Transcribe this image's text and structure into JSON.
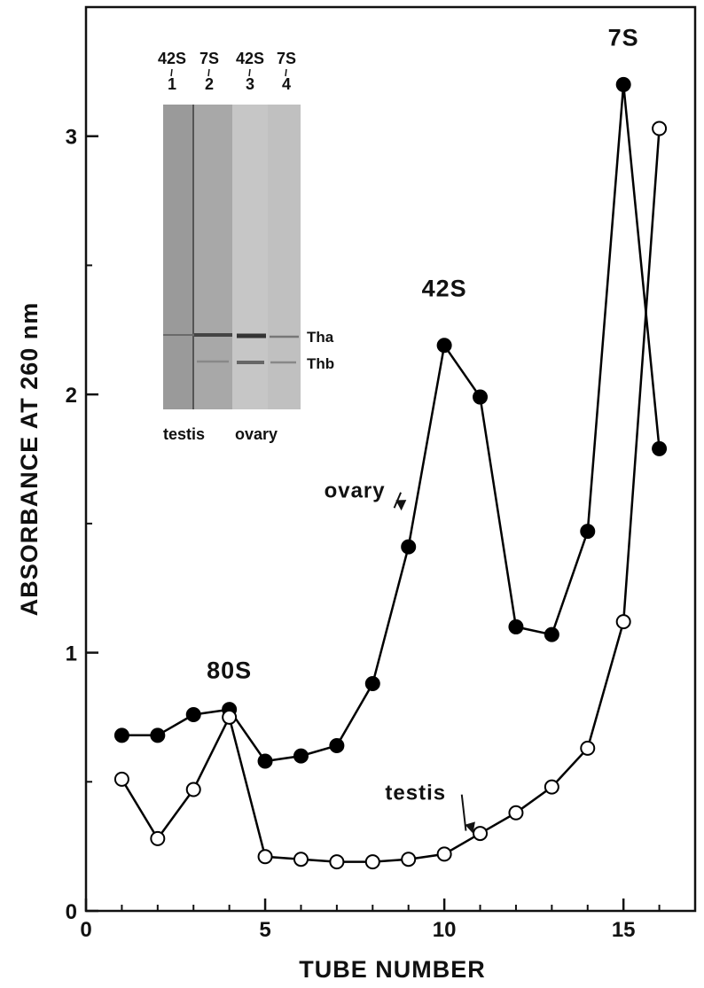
{
  "chart_data": {
    "type": "line",
    "title": "",
    "xlabel": "TUBE NUMBER",
    "ylabel": "ABSORBANCE AT 260 nm",
    "xlim": [
      0,
      17
    ],
    "ylim": [
      0,
      3.5
    ],
    "x_ticks": [
      "0",
      "5",
      "10",
      "15"
    ],
    "y_ticks": [
      "0",
      "1",
      "2",
      "3"
    ],
    "grid": false,
    "series": [
      {
        "name": "ovary",
        "marker": "filled-circle",
        "color": "#000000",
        "x": [
          1,
          2,
          3,
          4,
          5,
          6,
          7,
          8,
          9,
          10,
          11,
          12,
          13,
          14,
          15,
          16
        ],
        "y": [
          0.68,
          0.68,
          0.76,
          0.78,
          0.58,
          0.6,
          0.64,
          0.88,
          1.41,
          2.19,
          1.99,
          1.1,
          1.07,
          1.47,
          3.2,
          1.79
        ]
      },
      {
        "name": "testis",
        "marker": "open-circle",
        "color": "#000000",
        "x": [
          1,
          2,
          3,
          4,
          5,
          6,
          7,
          8,
          9,
          10,
          11,
          12,
          13,
          14,
          15,
          16
        ],
        "y": [
          0.51,
          0.28,
          0.47,
          0.75,
          0.21,
          0.2,
          0.19,
          0.19,
          0.2,
          0.22,
          0.3,
          0.38,
          0.48,
          0.63,
          1.12,
          3.03
        ]
      }
    ],
    "annotations": [
      {
        "text": "80S",
        "x": 4,
        "y": 0.9
      },
      {
        "text": "42S",
        "x": 10,
        "y": 2.38
      },
      {
        "text": "7S",
        "x": 15,
        "y": 3.35
      },
      {
        "text": "ovary",
        "x": 7.5,
        "y": 1.6,
        "arrow_to": [
          8.8,
          1.55
        ]
      },
      {
        "text": "testis",
        "x": 9.2,
        "y": 0.43,
        "arrow_to": [
          10.8,
          0.3
        ]
      }
    ],
    "inset": {
      "lanes": [
        {
          "top": "42S",
          "num": "1"
        },
        {
          "top": "7S",
          "num": "2"
        },
        {
          "top": "42S",
          "num": "3"
        },
        {
          "top": "7S",
          "num": "4"
        }
      ],
      "band_labels": [
        "Tha",
        "Thb"
      ],
      "group_labels": [
        "testis",
        "ovary"
      ]
    }
  }
}
